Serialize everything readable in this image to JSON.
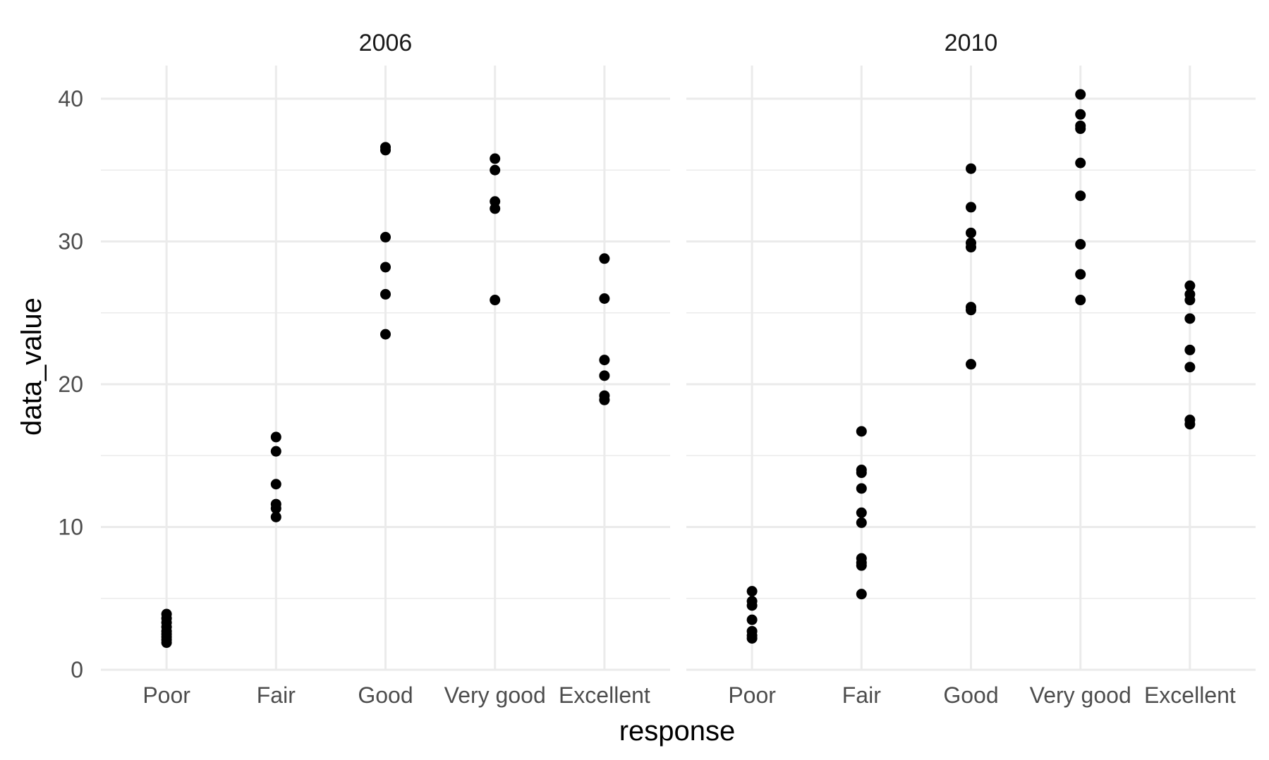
{
  "chart_data": {
    "type": "scatter",
    "xlabel": "response",
    "ylabel": "data_value",
    "categories": [
      "Poor",
      "Fair",
      "Good",
      "Very good",
      "Excellent"
    ],
    "yticks": [
      0,
      10,
      20,
      30,
      40
    ],
    "ylim": [
      0,
      42
    ],
    "grid": true,
    "point_color": "#000000",
    "panels": [
      {
        "facet": "2006",
        "points": {
          "Poor": [
            1.9,
            2.1,
            2.3,
            2.5,
            2.7,
            3.0,
            3.3,
            3.6,
            3.9
          ],
          "Fair": [
            10.7,
            11.3,
            11.6,
            13.0,
            15.3,
            16.3
          ],
          "Good": [
            23.5,
            26.3,
            28.2,
            30.3,
            36.4,
            36.6
          ],
          "Very good": [
            25.9,
            32.3,
            32.8,
            35.0,
            35.8
          ],
          "Excellent": [
            18.9,
            19.2,
            20.6,
            21.7,
            26.0,
            28.8
          ]
        }
      },
      {
        "facet": "2010",
        "points": {
          "Poor": [
            2.2,
            2.4,
            2.7,
            3.5,
            4.5,
            4.8,
            5.5
          ],
          "Fair": [
            5.3,
            7.3,
            7.5,
            7.8,
            10.3,
            11.0,
            12.7,
            13.8,
            14.0,
            16.7
          ],
          "Good": [
            21.4,
            25.2,
            25.4,
            29.6,
            29.9,
            30.6,
            32.4,
            35.1
          ],
          "Very good": [
            25.9,
            27.7,
            29.8,
            33.2,
            35.5,
            37.9,
            38.1,
            38.9,
            40.3
          ],
          "Excellent": [
            17.2,
            17.5,
            21.2,
            22.4,
            24.6,
            25.9,
            26.3,
            26.9
          ]
        }
      }
    ]
  }
}
